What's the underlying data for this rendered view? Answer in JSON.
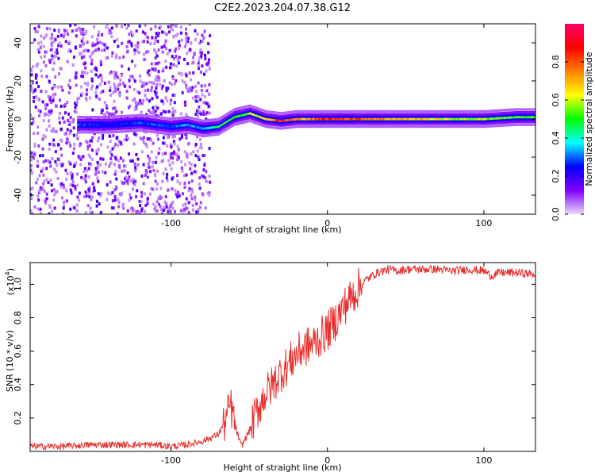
{
  "title": "C2E2.2023.204.07.38.G12",
  "chart_data": [
    {
      "type": "heatmap",
      "panel": "spectrogram",
      "xlabel": "Height of straight line (km)",
      "ylabel": "Frequency (Hz)",
      "xlim": [
        -190,
        133
      ],
      "ylim": [
        -50,
        50
      ],
      "x_ticks": [
        -100,
        0,
        100
      ],
      "x_tick_labels": [
        "-100",
        "0",
        "100"
      ],
      "y_ticks": [
        -40,
        -20,
        0,
        20,
        40
      ],
      "y_tick_labels": [
        "-40",
        "-20",
        "0",
        "20",
        "40"
      ],
      "colorbar": {
        "label": "Normalized spectral amplitude",
        "range": [
          0.0,
          1.0
        ],
        "ticks": [
          0.0,
          0.2,
          0.4,
          0.6,
          0.8
        ],
        "tick_labels": [
          "0.0",
          "0.2",
          "0.4",
          "0.6",
          "0.8"
        ],
        "colors": [
          "#e9d7fb",
          "#8000ff",
          "#0000ff",
          "#00ffff",
          "#00ff00",
          "#ffff00",
          "#ff8000",
          "#ff0000",
          "#ff0066"
        ]
      },
      "ridge": {
        "x": [
          -160,
          -140,
          -120,
          -100,
          -90,
          -80,
          -70,
          -60,
          -50,
          -40,
          -30,
          -20,
          -10,
          0,
          20,
          40,
          60,
          80,
          100,
          120,
          133
        ],
        "y": [
          -3,
          -3,
          -2,
          -4,
          -3,
          -5,
          -4,
          1,
          3,
          0,
          -1,
          0,
          0,
          0,
          0,
          0,
          0,
          0,
          0,
          1,
          1
        ],
        "amplitude": [
          0.3,
          0.25,
          0.3,
          0.3,
          0.35,
          0.35,
          0.5,
          0.55,
          0.6,
          0.7,
          0.9,
          0.75,
          0.8,
          0.9,
          0.85,
          0.75,
          0.7,
          0.6,
          0.6,
          0.55,
          0.55
        ]
      },
      "noise_region_x": [
        -190,
        -75
      ]
    },
    {
      "type": "line",
      "panel": "snr",
      "xlabel": "Height of straight line (km)",
      "ylabel": "SNR (10 * v/v)",
      "y_multiplier_label": "(x10",
      "y_multiplier_exponent": "4",
      "y_multiplier_close": ")",
      "xlim": [
        -190,
        133
      ],
      "ylim": [
        0.0,
        1.13
      ],
      "x_ticks": [
        -100,
        0,
        100
      ],
      "x_tick_labels": [
        "-100",
        "0",
        "100"
      ],
      "y_ticks": [
        0.2,
        0.4,
        0.6,
        0.8,
        1.0
      ],
      "y_tick_labels": [
        "0.2",
        "0.4",
        "0.6",
        "0.8",
        "1.0"
      ],
      "color": "#e8302e",
      "series": [
        {
          "x": [
            -190,
            -170,
            -150,
            -130,
            -110,
            -100,
            -90,
            -80,
            -75,
            -70,
            -65,
            -62,
            -58,
            -55,
            -50,
            -45,
            -40,
            -35,
            -30,
            -25,
            -20,
            -15,
            -10,
            -5,
            0,
            5,
            10,
            15,
            20,
            25,
            30,
            35,
            40,
            45,
            50,
            60,
            70,
            80,
            90,
            100,
            105,
            110,
            120,
            133
          ],
          "y": [
            0.03,
            0.03,
            0.04,
            0.04,
            0.04,
            0.03,
            0.04,
            0.06,
            0.08,
            0.1,
            0.18,
            0.28,
            0.12,
            0.03,
            0.12,
            0.24,
            0.34,
            0.4,
            0.47,
            0.52,
            0.58,
            0.62,
            0.64,
            0.68,
            0.72,
            0.78,
            0.86,
            0.92,
            0.98,
            1.03,
            1.06,
            1.08,
            1.09,
            1.08,
            1.09,
            1.09,
            1.09,
            1.08,
            1.09,
            1.08,
            1.05,
            1.07,
            1.07,
            1.06
          ]
        }
      ]
    }
  ]
}
